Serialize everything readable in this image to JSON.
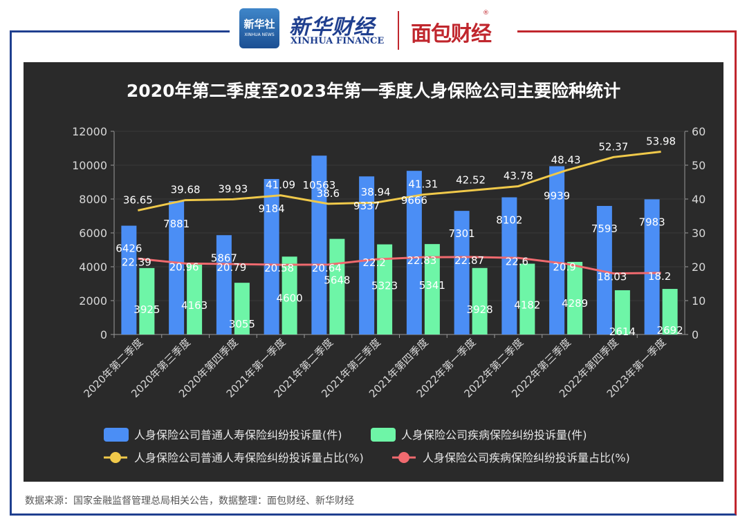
{
  "header": {
    "xinhua_logo_text": "新华社",
    "xinhua_logo_sub": "XINHUA NEWS",
    "xinhua_finance_cn": "新华财经",
    "xinhua_finance_en": "XINHUA FINANCE",
    "mianbao_logo": "面包财经",
    "registered_mark": "®"
  },
  "colors": {
    "panel_bg": "#2a2a2a",
    "blue_bar": "#4b8ef5",
    "green_bar": "#6ef5a7",
    "yellow_line": "#f0c94a",
    "red_line": "#f06a6f",
    "frame_blue": "#1f3f8f",
    "frame_red": "#c0262d"
  },
  "chart_data": {
    "type": "bar",
    "title": "2020年第二季度至2023年第一季度人身保险公司主要险种统计",
    "categories": [
      "2020年第二季度",
      "2020年第三季度",
      "2020年第四季度",
      "2021年第一季度",
      "2021年第二季度",
      "2021年第三季度",
      "2021年第四季度",
      "2022年第一季度",
      "2022年第二季度",
      "2022年第三季度",
      "2022年第四季度",
      "2023年第一季度"
    ],
    "y_left": {
      "min": 0,
      "max": 12000,
      "ticks": [
        0,
        2000,
        4000,
        6000,
        8000,
        10000,
        12000
      ]
    },
    "y_right": {
      "min": 0,
      "max": 60,
      "ticks": [
        0,
        10,
        20,
        30,
        40,
        50,
        60
      ]
    },
    "series": [
      {
        "name": "人身保险公司普通人寿保险纠纷投诉量(件)",
        "type": "bar",
        "axis": "left",
        "values": [
          6426,
          7881,
          5867,
          9184,
          10563,
          9337,
          9666,
          7301,
          8102,
          9939,
          7593,
          7983
        ]
      },
      {
        "name": "人身保险公司疾病保险纠纷投诉量(件)",
        "type": "bar",
        "axis": "left",
        "values": [
          3925,
          4163,
          3055,
          4600,
          5648,
          5323,
          5341,
          3928,
          4182,
          4289,
          2614,
          2692
        ]
      },
      {
        "name": "人身保险公司普通人寿保险纠纷投诉量占比(%)",
        "type": "line",
        "axis": "right",
        "values": [
          36.65,
          39.68,
          39.93,
          41.09,
          38.6,
          38.94,
          41.31,
          42.52,
          43.78,
          48.43,
          52.37,
          53.98
        ]
      },
      {
        "name": "人身保险公司疾病保险纠纷投诉量占比(%)",
        "type": "line",
        "axis": "right",
        "values": [
          22.39,
          20.96,
          20.79,
          20.58,
          20.64,
          22.2,
          22.83,
          22.87,
          22.6,
          20.9,
          18.03,
          18.2
        ]
      }
    ],
    "legend_position": "bottom"
  },
  "source_note": "数据来源：国家金融监督管理总局相关公告，数据整理：面包财经、新华财经"
}
